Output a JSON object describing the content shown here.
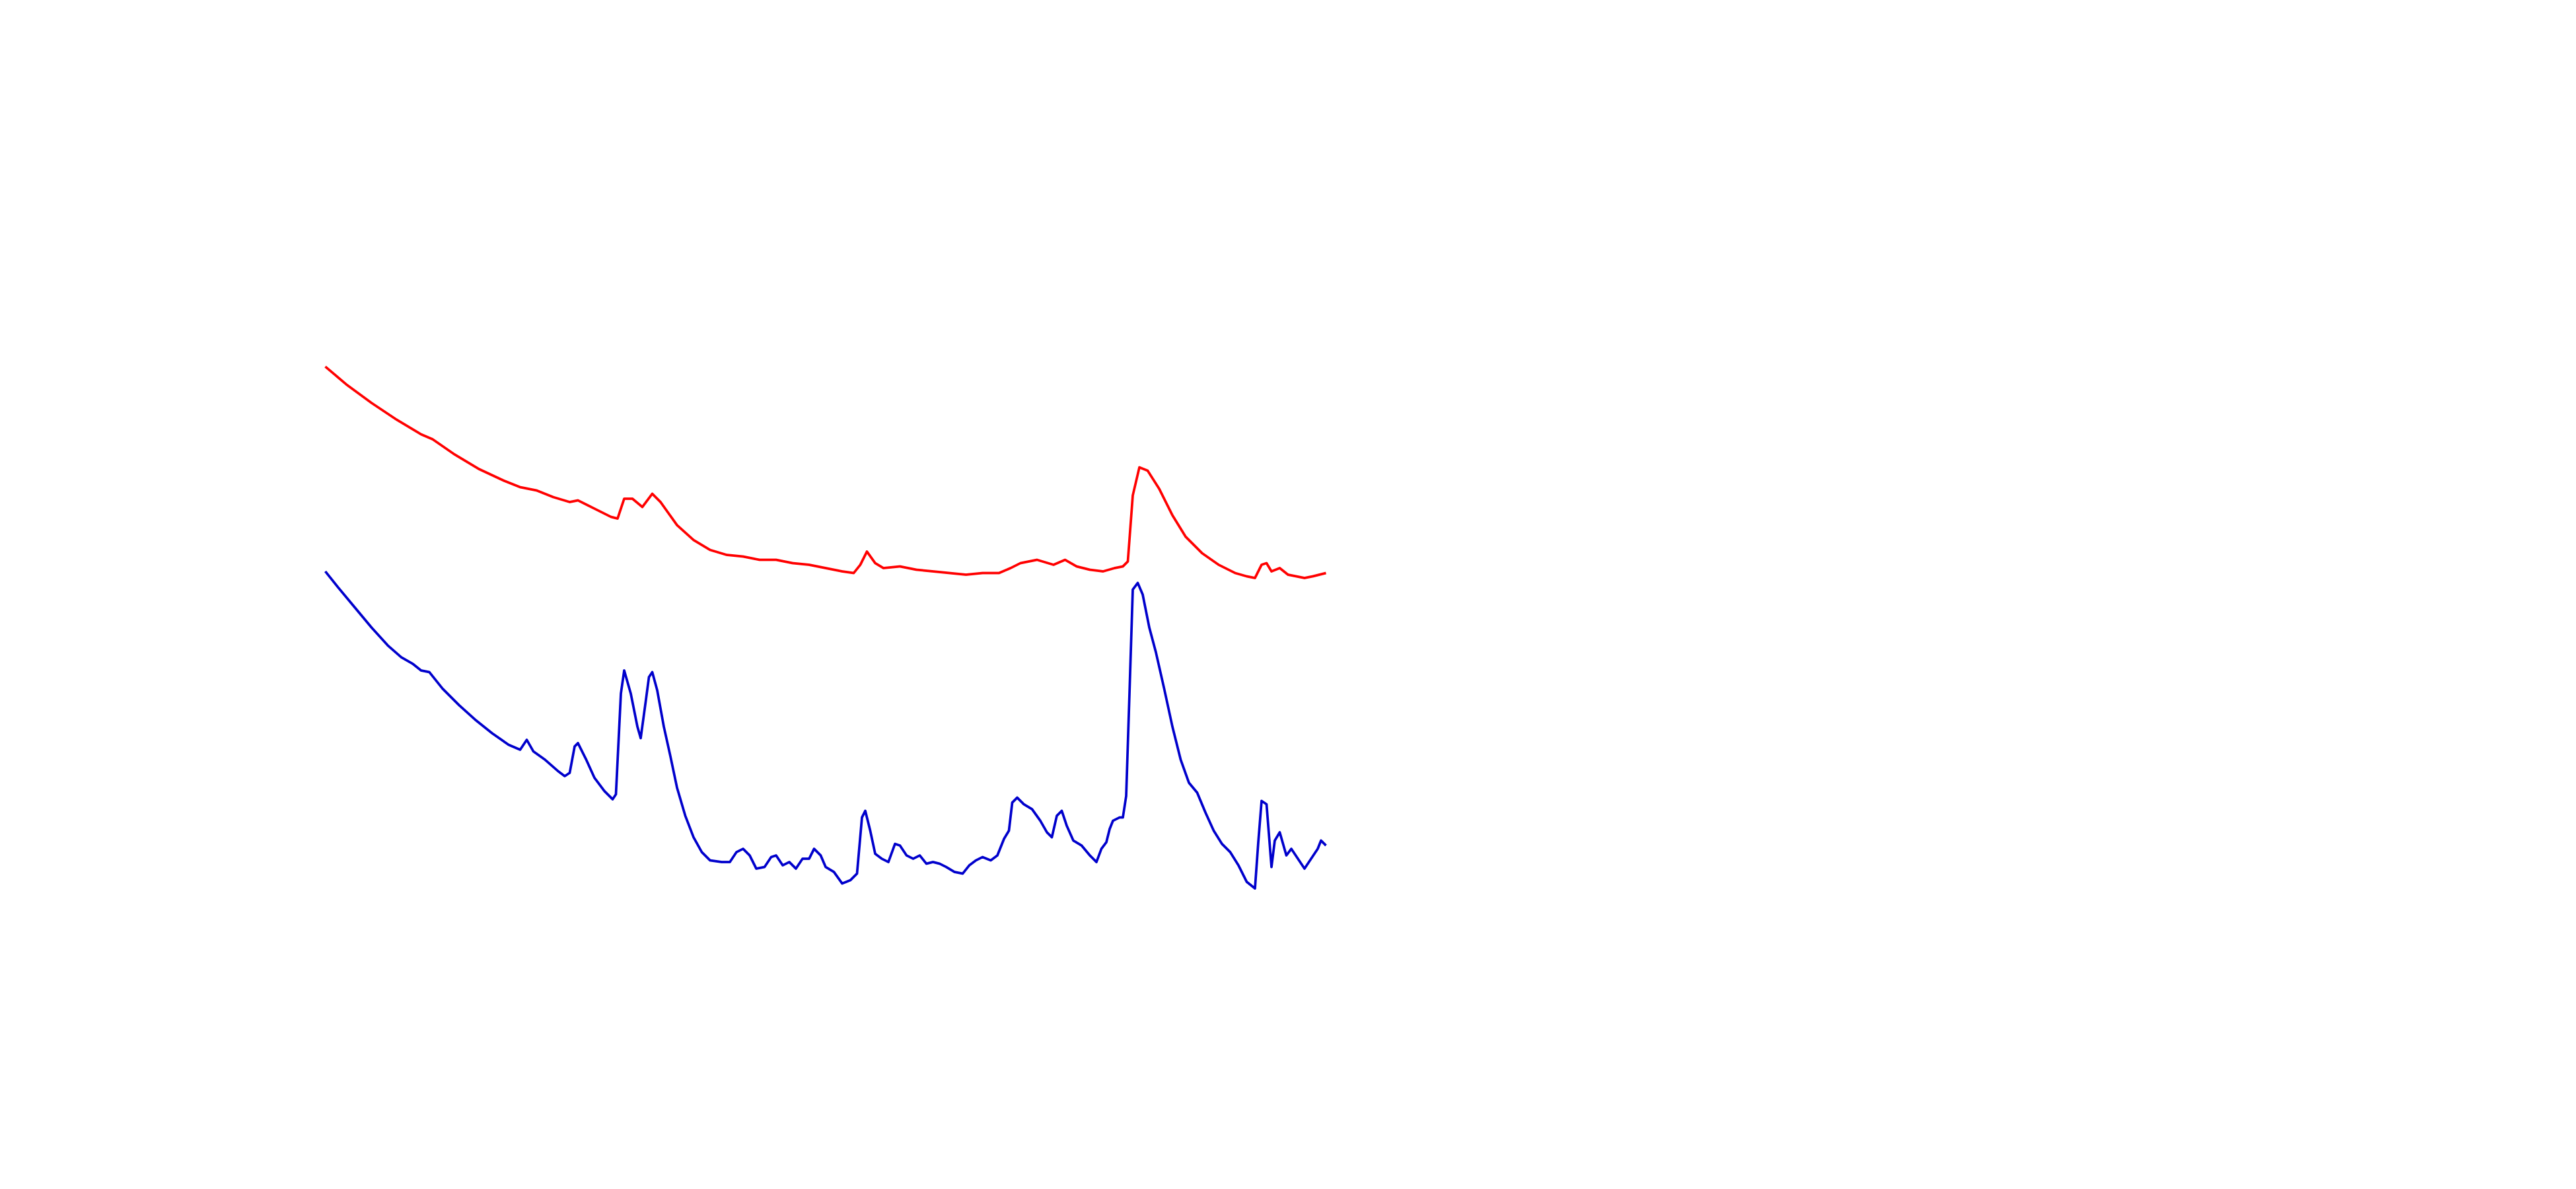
{
  "chart_data": {
    "type": "line",
    "xlim": [
      0,
      606
    ],
    "ylim": [
      0,
      360
    ],
    "grid": false,
    "series": [
      {
        "color": "#ff0000",
        "x": [
          0,
          13,
          28,
          43,
          58,
          65,
          78,
          93,
          108,
          118,
          128,
          138,
          148,
          153,
          163,
          173,
          177,
          181,
          186,
          192,
          198,
          203,
          213,
          223,
          233,
          243,
          253,
          263,
          273,
          283,
          293,
          303,
          313,
          320,
          324,
          328,
          333,
          338,
          348,
          358,
          368,
          378,
          388,
          398,
          408,
          415,
          421,
          431,
          441,
          448,
          455,
          463,
          471,
          478,
          483,
          486,
          489,
          493,
          498,
          505,
          513,
          521,
          531,
          541,
          551,
          558,
          563,
          567,
          570,
          573,
          578,
          583,
          593,
          598,
          606
        ],
        "values": [
          338,
          327,
          316,
          306,
          297,
          294,
          285,
          276,
          269,
          265,
          263,
          259,
          256,
          257,
          252,
          247,
          246,
          258,
          258,
          253,
          261,
          256,
          242,
          233,
          227,
          224,
          223,
          221,
          221,
          219,
          218,
          216,
          214,
          213,
          218,
          226,
          219,
          216,
          217,
          215,
          214,
          213,
          212,
          213,
          213,
          216,
          219,
          221,
          218,
          221,
          217,
          215,
          214,
          216,
          217,
          220,
          260,
          277,
          275,
          264,
          248,
          235,
          225,
          218,
          213,
          211,
          210,
          218,
          219,
          214,
          216,
          212,
          210,
          211,
          213
        ]
      },
      {
        "color": "#0000cc",
        "x": [
          0,
          8,
          18,
          28,
          38,
          46,
          53,
          58,
          63,
          71,
          81,
          91,
          101,
          111,
          118,
          122,
          126,
          133,
          141,
          145,
          148,
          151,
          153,
          158,
          163,
          169,
          174,
          176,
          179,
          181,
          185,
          189,
          191,
          194,
          196,
          198,
          201,
          205,
          209,
          213,
          218,
          223,
          228,
          233,
          240,
          245,
          249,
          253,
          257,
          261,
          266,
          270,
          273,
          277,
          281,
          285,
          289,
          293,
          296,
          300,
          303,
          308,
          313,
          318,
          322,
          325,
          327,
          330,
          333,
          337,
          341,
          345,
          348,
          352,
          356,
          360,
          364,
          368,
          372,
          376,
          381,
          386,
          390,
          394,
          398,
          403,
          407,
          411,
          414,
          416,
          419,
          423,
          428,
          433,
          437,
          440,
          443,
          446,
          449,
          453,
          458,
          463,
          467,
          470,
          473,
          475,
          477,
          481,
          483,
          485,
          487,
          489,
          492,
          495,
          499,
          503,
          508,
          513,
          518,
          523,
          528,
          533,
          538,
          543,
          548,
          553,
          558,
          563,
          565,
          567,
          570,
          573,
          575,
          578,
          582,
          585,
          589,
          593,
          597,
          601,
          603,
          606
        ],
        "values": [
          214,
          204,
          192,
          180,
          169,
          162,
          158,
          154,
          153,
          143,
          133,
          124,
          116,
          109,
          106,
          112,
          105,
          100,
          93,
          90,
          92,
          108,
          110,
          100,
          89,
          81,
          76,
          79,
          140,
          154,
          140,
          120,
          113,
          135,
          150,
          153,
          142,
          120,
          102,
          83,
          66,
          53,
          44,
          39,
          38,
          38,
          44,
          46,
          42,
          34,
          35,
          41,
          42,
          36,
          38,
          34,
          40,
          40,
          46,
          42,
          35,
          32,
          25,
          27,
          31,
          65,
          69,
          57,
          43,
          40,
          38,
          49,
          48,
          42,
          40,
          42,
          37,
          38,
          37,
          35,
          32,
          31,
          36,
          39,
          41,
          39,
          42,
          52,
          57,
          74,
          77,
          73,
          70,
          63,
          56,
          53,
          66,
          69,
          60,
          51,
          48,
          42,
          38,
          46,
          50,
          58,
          63,
          65,
          65,
          78,
          140,
          203,
          207,
          200,
          180,
          165,
          143,
          120,
          100,
          86,
          80,
          68,
          57,
          49,
          44,
          36,
          26,
          22,
          50,
          75,
          73,
          35,
          51,
          56,
          42,
          46,
          40,
          34,
          40,
          46,
          51,
          48
        ]
      }
    ]
  }
}
